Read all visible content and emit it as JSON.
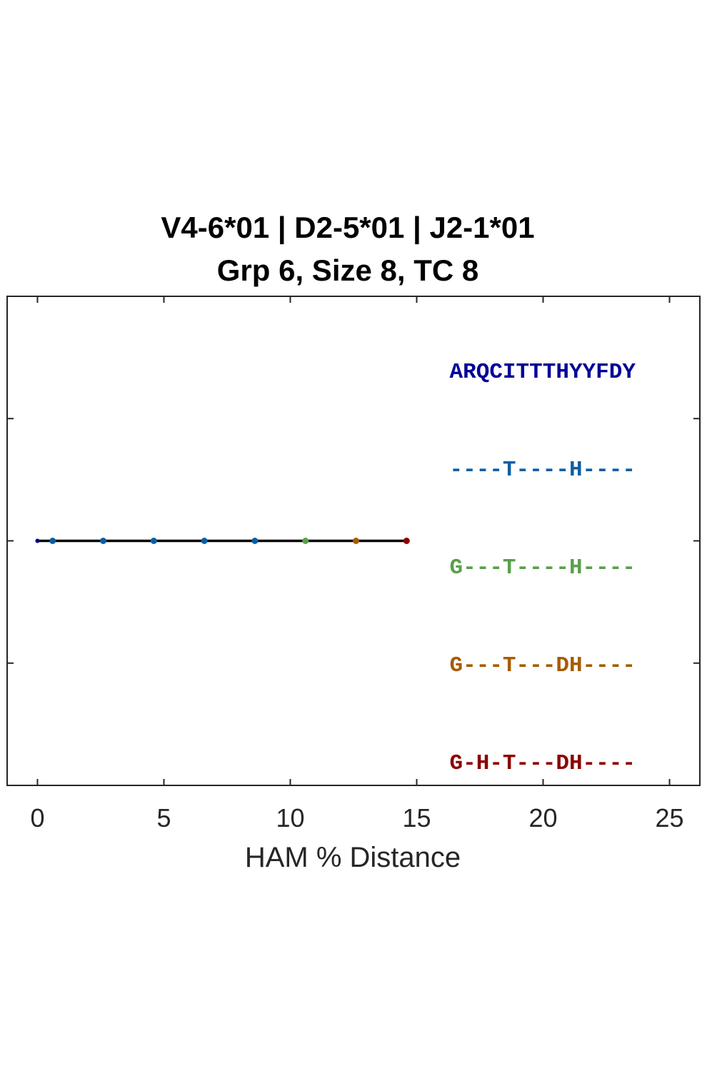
{
  "chart_data": {
    "type": "scatter",
    "title_lines": [
      "V4-6*01 | D2-5*01 | J2-1*01",
      "Grp 6, Size 8, TC 8"
    ],
    "xlabel": "HAM % Distance",
    "ylabel": "",
    "xlim": [
      -1.2,
      26.2
    ],
    "ylim": [
      0,
      4
    ],
    "xticks": [
      0,
      5,
      10,
      15,
      20,
      25
    ],
    "xtick_labels": [
      "0",
      "5",
      "10",
      "15",
      "20",
      "25"
    ],
    "yticks": [
      0,
      1,
      2,
      3,
      4
    ],
    "grid": false,
    "legend": "none",
    "tree_line": {
      "x": [
        0,
        14.6
      ],
      "y": 2,
      "color": "#000000"
    },
    "points": [
      {
        "x": 0.0,
        "y": 2,
        "color": "#000080"
      },
      {
        "x": 0.6,
        "y": 2,
        "color": "#0b5fa5"
      },
      {
        "x": 2.6,
        "y": 2,
        "color": "#0b5fa5"
      },
      {
        "x": 4.6,
        "y": 2,
        "color": "#0b5fa5"
      },
      {
        "x": 6.6,
        "y": 2,
        "color": "#0b5fa5"
      },
      {
        "x": 8.6,
        "y": 2,
        "color": "#0b5fa5"
      },
      {
        "x": 10.6,
        "y": 2,
        "color": "#5aa04a"
      },
      {
        "x": 12.6,
        "y": 2,
        "color": "#a65c00"
      },
      {
        "x": 14.6,
        "y": 2,
        "color": "#8b0000"
      }
    ],
    "sequences": [
      {
        "text": "ARQCITTTHYYFDY",
        "y": 3.4,
        "color": "#000099"
      },
      {
        "text": "----T----H----",
        "y": 2.6,
        "color": "#0b5fa5"
      },
      {
        "text": "G---T----H----",
        "y": 1.8,
        "color": "#5aa04a"
      },
      {
        "text": "G---T---DH----",
        "y": 1.0,
        "color": "#a65c00"
      },
      {
        "text": "G-H-T---DH----",
        "y": 0.2,
        "color": "#8b0000"
      }
    ],
    "sequence_x": 16.3
  }
}
